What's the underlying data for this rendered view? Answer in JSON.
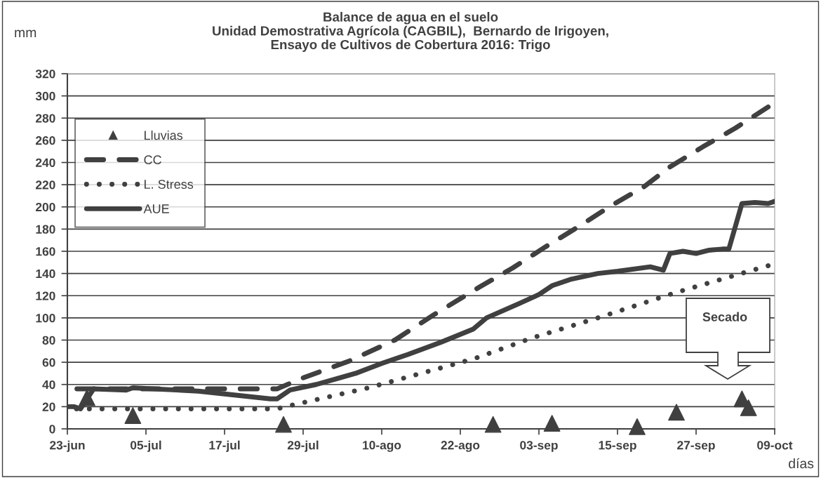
{
  "chart_data": {
    "type": "line",
    "title": "Balance de agua en el suelo\nUnidad Demostrativa Agrícola (CAGBIL),  Bernardo de Irigoyen,\nEnsayo de Cultivos de Cobertura 2016: Trigo",
    "ylabel": "mm",
    "xlabel": "días",
    "series": [
      {
        "name": "Lluvias",
        "type": "scatter",
        "marker": "triangle",
        "color": "#404040",
        "x": [
          "2016-06-26",
          "2016-07-03",
          "2016-07-26",
          "2016-08-27",
          "2016-09-05",
          "2016-09-18",
          "2016-09-24",
          "2016-10-04",
          "2016-10-05"
        ],
        "values": [
          28,
          12,
          4,
          4,
          5,
          2,
          15,
          27,
          19
        ]
      },
      {
        "name": "CC",
        "line_style": "dashed",
        "color": "#404040",
        "x": [
          "2016-06-23",
          "2016-07-25",
          "2016-07-29",
          "2016-08-05",
          "2016-08-12",
          "2016-08-18",
          "2016-08-25",
          "2016-08-30",
          "2016-09-04",
          "2016-09-09",
          "2016-09-14",
          "2016-09-19",
          "2016-09-23",
          "2016-09-28",
          "2016-10-03",
          "2016-10-08"
        ],
        "values": [
          36,
          36,
          46,
          61,
          80,
          103,
          128,
          145,
          164,
          182,
          201,
          218,
          236,
          254,
          271,
          290
        ]
      },
      {
        "name": "L. Stress",
        "line_style": "dotted",
        "color": "#404040",
        "x": [
          "2016-06-23",
          "2016-07-25",
          "2016-07-27",
          "2016-08-02",
          "2016-08-08",
          "2016-08-16",
          "2016-08-24",
          "2016-09-02",
          "2016-09-12",
          "2016-09-24",
          "2016-10-08"
        ],
        "values": [
          18,
          18,
          21,
          29,
          37,
          50,
          63,
          82,
          100,
          123,
          147
        ]
      },
      {
        "name": "AUE",
        "line_style": "solid",
        "color": "#404040",
        "x": [
          "2016-06-23",
          "2016-06-24",
          "2016-06-25",
          "2016-06-27",
          "2016-07-02",
          "2016-07-03",
          "2016-07-13",
          "2016-07-24",
          "2016-07-25",
          "2016-07-27",
          "2016-07-31",
          "2016-08-03",
          "2016-08-06",
          "2016-08-10",
          "2016-08-14",
          "2016-08-19",
          "2016-08-24",
          "2016-08-26",
          "2016-08-31",
          "2016-09-03",
          "2016-09-05",
          "2016-09-08",
          "2016-09-12",
          "2016-09-15",
          "2016-09-20",
          "2016-09-22",
          "2016-09-23",
          "2016-09-25",
          "2016-09-27",
          "2016-09-29",
          "2016-10-01",
          "2016-10-02",
          "2016-10-04",
          "2016-10-06",
          "2016-10-08",
          "2016-10-09"
        ],
        "values": [
          20,
          20,
          18,
          36,
          35,
          37,
          34,
          27,
          27,
          35,
          40,
          45,
          50,
          59,
          67,
          78,
          90,
          100,
          113,
          121,
          129,
          135,
          140,
          142,
          146,
          143,
          158,
          160,
          158,
          161,
          162,
          162,
          203,
          204,
          203,
          205
        ]
      }
    ],
    "xlim": [
      "2016-06-23",
      "2016-10-09"
    ],
    "xticks": [
      {
        "value": "2016-06-23",
        "label": "23-jun"
      },
      {
        "value": "2016-07-05",
        "label": "05-jul"
      },
      {
        "value": "2016-07-17",
        "label": "17-jul"
      },
      {
        "value": "2016-07-29",
        "label": "29-jul"
      },
      {
        "value": "2016-08-10",
        "label": "10-ago"
      },
      {
        "value": "2016-08-22",
        "label": "22-ago"
      },
      {
        "value": "2016-09-03",
        "label": "03-sep"
      },
      {
        "value": "2016-09-15",
        "label": "15-sep"
      },
      {
        "value": "2016-09-27",
        "label": "27-sep"
      },
      {
        "value": "2016-10-09",
        "label": "09-oct"
      }
    ],
    "ylim": [
      0,
      320
    ],
    "yticks": [
      0,
      20,
      40,
      60,
      80,
      100,
      120,
      140,
      160,
      180,
      200,
      220,
      240,
      260,
      280,
      300,
      320
    ],
    "grid": "y",
    "legend": "top left",
    "annotations": [
      "Secado"
    ]
  }
}
